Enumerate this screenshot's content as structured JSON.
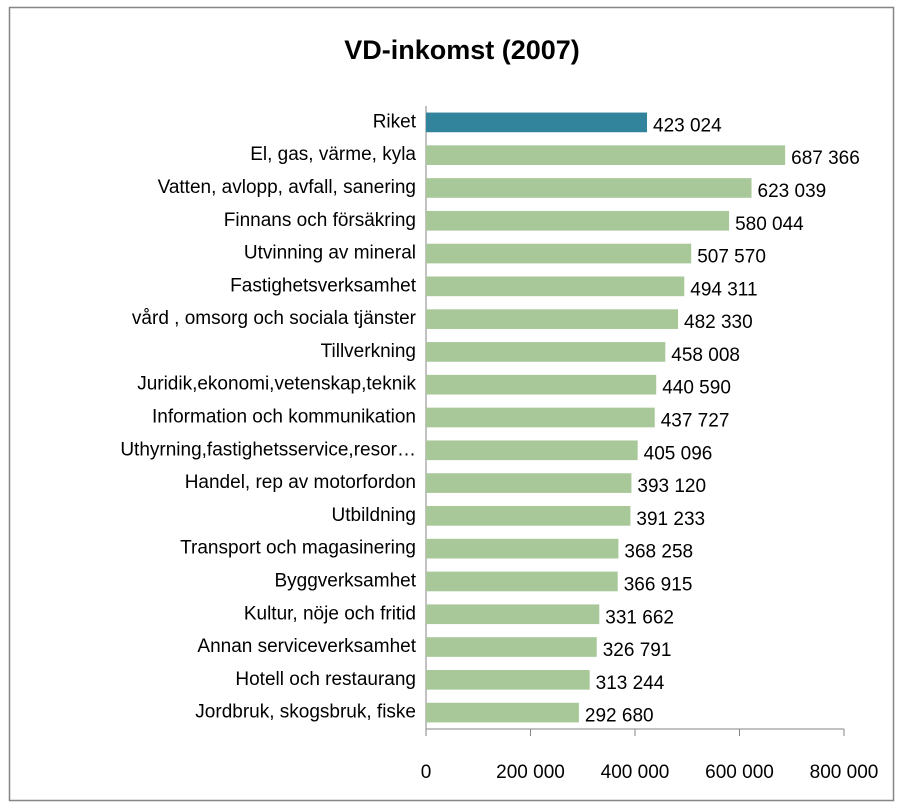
{
  "chart_data": {
    "type": "barh",
    "title": "VD-inkomst (2007)",
    "categories": [
      "Riket",
      "El, gas, värme, kyla",
      "Vatten, avlopp, avfall, sanering",
      "Finnans och försäkring",
      "Utvinning av mineral",
      "Fastighetsverksamhet",
      "vård , omsorg och sociala tjänster",
      "Tillverkning",
      "Juridik,ekonomi,vetenskap,teknik",
      "Information och kommunikation",
      "Uthyrning,fastighetsservice,resor…",
      "Handel, rep av motorfordon",
      "Utbildning",
      "Transport och magasinering",
      "Byggverksamhet",
      "Kultur, nöje och fritid",
      "Annan serviceverksamhet",
      "Hotell och restaurang",
      "Jordbruk, skogsbruk, fiske"
    ],
    "values": [
      423024,
      687366,
      623039,
      580044,
      507570,
      494311,
      482330,
      458008,
      440590,
      437727,
      405096,
      393120,
      391233,
      368258,
      366915,
      331662,
      326791,
      313244,
      292680
    ],
    "value_labels": [
      "423 024",
      "687 366",
      "623 039",
      "580 044",
      "507 570",
      "494 311",
      "482 330",
      "458 008",
      "440 590",
      "437 727",
      "405 096",
      "393 120",
      "391 233",
      "368 258",
      "366 915",
      "331 662",
      "326 791",
      "313 244",
      "292 680"
    ],
    "colors": [
      "#31849b",
      "#a8c89a",
      "#a8c89a",
      "#a8c89a",
      "#a8c89a",
      "#a8c89a",
      "#a8c89a",
      "#a8c89a",
      "#a8c89a",
      "#a8c89a",
      "#a8c89a",
      "#a8c89a",
      "#a8c89a",
      "#a8c89a",
      "#a8c89a",
      "#a8c89a",
      "#a8c89a",
      "#a8c89a",
      "#a8c89a"
    ],
    "xlim": [
      0,
      800000
    ],
    "xticks": [
      0,
      {
        "value": 200000,
        "label": "200 000"
      },
      {
        "value": 400000,
        "label": "400 000"
      },
      {
        "value": 600000,
        "label": "600 000"
      },
      {
        "value": 800000,
        "label": "800 000"
      }
    ],
    "grid": false
  }
}
